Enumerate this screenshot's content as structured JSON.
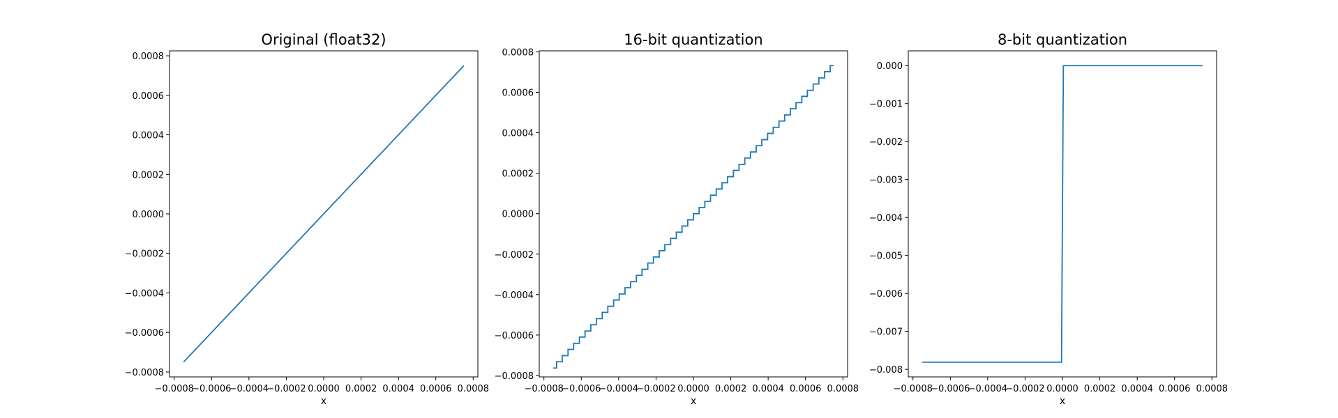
{
  "chart_data": [
    {
      "type": "line",
      "title": "Original (float32)",
      "xlabel": "x",
      "ylabel": "",
      "xlim": [
        -0.000825,
        0.000825
      ],
      "ylim": [
        -0.000825,
        0.000825
      ],
      "xticks": [
        -0.0008,
        -0.0006,
        -0.0004,
        -0.0002,
        0.0,
        0.0002,
        0.0004,
        0.0006,
        0.0008
      ],
      "xtick_labels": [
        "−0.0008",
        "−0.0006",
        "−0.0004",
        "−0.0002",
        "0.0000",
        "0.0002",
        "0.0004",
        "0.0006",
        "0.0008"
      ],
      "yticks": [
        -0.0008,
        -0.0006,
        -0.0004,
        -0.0002,
        0.0,
        0.0002,
        0.0004,
        0.0006,
        0.0008
      ],
      "ytick_labels": [
        "−0.0008",
        "−0.0006",
        "−0.0004",
        "−0.0002",
        "0.0000",
        "0.0002",
        "0.0004",
        "0.0006",
        "0.0008"
      ],
      "grid": false,
      "color": "#1f77b4",
      "series": [
        {
          "x": [
            -0.00075,
            0.00075
          ],
          "y": [
            -0.00075,
            0.00075
          ]
        }
      ]
    },
    {
      "type": "line",
      "title": "16-bit quantization",
      "xlabel": "x",
      "ylabel": "",
      "xlim": [
        -0.000825,
        0.000825
      ],
      "ylim": [
        -0.000807,
        0.000805
      ],
      "xticks": [
        -0.0008,
        -0.0006,
        -0.0004,
        -0.0002,
        0.0,
        0.0002,
        0.0004,
        0.0006,
        0.0008
      ],
      "xtick_labels": [
        "−0.0008",
        "−0.0006",
        "−0.0004",
        "−0.0002",
        "0.0000",
        "0.0002",
        "0.0004",
        "0.0006",
        "0.0008"
      ],
      "yticks": [
        -0.0008,
        -0.0006,
        -0.0004,
        -0.0002,
        0.0,
        0.0002,
        0.0004,
        0.0006,
        0.0008
      ],
      "ytick_labels": [
        "−0.0008",
        "−0.0006",
        "−0.0004",
        "−0.0002",
        "0.0000",
        "0.0002",
        "0.0004",
        "0.0006",
        "0.0008"
      ],
      "grid": false,
      "color": "#1f77b4",
      "series": [
        {
          "x": [
            -0.00075,
            -0.000732,
            -0.000732,
            -0.000702,
            -0.000702,
            -0.000671,
            -0.000671,
            -0.000641,
            -0.000641,
            -0.00061,
            -0.00061,
            -0.00058,
            -0.00058,
            -0.000549,
            -0.000549,
            -0.000519,
            -0.000519,
            -0.000488,
            -0.000488,
            -0.000458,
            -0.000458,
            -0.000427,
            -0.000427,
            -0.000397,
            -0.000397,
            -0.000366,
            -0.000366,
            -0.000336,
            -0.000336,
            -0.000305,
            -0.000305,
            -0.000275,
            -0.000275,
            -0.000244,
            -0.000244,
            -0.000214,
            -0.000214,
            -0.000183,
            -0.000183,
            -0.000153,
            -0.000153,
            -0.000122,
            -0.000122,
            -9.16e-05,
            -9.16e-05,
            -6.1e-05,
            -6.1e-05,
            -3.05e-05,
            -3.05e-05,
            0.0,
            0.0,
            3.05e-05,
            3.05e-05,
            6.1e-05,
            6.1e-05,
            9.16e-05,
            9.16e-05,
            0.000122,
            0.000122,
            0.000153,
            0.000153,
            0.000183,
            0.000183,
            0.000214,
            0.000214,
            0.000244,
            0.000244,
            0.000275,
            0.000275,
            0.000305,
            0.000305,
            0.000336,
            0.000336,
            0.000366,
            0.000366,
            0.000397,
            0.000397,
            0.000427,
            0.000427,
            0.000458,
            0.000458,
            0.000488,
            0.000488,
            0.000519,
            0.000519,
            0.000549,
            0.000549,
            0.00058,
            0.00058,
            0.00061,
            0.00061,
            0.000641,
            0.000641,
            0.000671,
            0.000671,
            0.000702,
            0.000702,
            0.000732,
            0.000732,
            0.00075
          ],
          "y": [
            -0.000763,
            -0.000763,
            -0.000732,
            -0.000732,
            -0.000702,
            -0.000702,
            -0.000671,
            -0.000671,
            -0.000641,
            -0.000641,
            -0.00061,
            -0.00061,
            -0.00058,
            -0.00058,
            -0.000549,
            -0.000549,
            -0.000519,
            -0.000519,
            -0.000488,
            -0.000488,
            -0.000458,
            -0.000458,
            -0.000427,
            -0.000427,
            -0.000397,
            -0.000397,
            -0.000366,
            -0.000366,
            -0.000336,
            -0.000336,
            -0.000305,
            -0.000305,
            -0.000275,
            -0.000275,
            -0.000244,
            -0.000244,
            -0.000214,
            -0.000214,
            -0.000183,
            -0.000183,
            -0.000153,
            -0.000153,
            -0.000122,
            -0.000122,
            -9.16e-05,
            -9.16e-05,
            -6.1e-05,
            -6.1e-05,
            -3.05e-05,
            -3.05e-05,
            0.0,
            0.0,
            3.05e-05,
            3.05e-05,
            6.1e-05,
            6.1e-05,
            9.16e-05,
            9.16e-05,
            0.000122,
            0.000122,
            0.000153,
            0.000153,
            0.000183,
            0.000183,
            0.000214,
            0.000214,
            0.000244,
            0.000244,
            0.000275,
            0.000275,
            0.000305,
            0.000305,
            0.000336,
            0.000336,
            0.000366,
            0.000366,
            0.000397,
            0.000397,
            0.000427,
            0.000427,
            0.000458,
            0.000458,
            0.000488,
            0.000488,
            0.000519,
            0.000519,
            0.000549,
            0.000549,
            0.00058,
            0.00058,
            0.00061,
            0.00061,
            0.000641,
            0.000641,
            0.000671,
            0.000671,
            0.000702,
            0.000702,
            0.000732,
            0.000732
          ]
        }
      ]
    },
    {
      "type": "line",
      "title": "8-bit quantization",
      "xlabel": "x",
      "ylabel": "",
      "xlim": [
        -0.000825,
        0.000825
      ],
      "ylim": [
        -0.0082,
        0.00039
      ],
      "xticks": [
        -0.0008,
        -0.0006,
        -0.0004,
        -0.0002,
        0.0,
        0.0002,
        0.0004,
        0.0006,
        0.0008
      ],
      "xtick_labels": [
        "−0.0008",
        "−0.0006",
        "−0.0004",
        "−0.0002",
        "0.0000",
        "0.0002",
        "0.0004",
        "0.0006",
        "0.0008"
      ],
      "yticks": [
        -0.008,
        -0.007,
        -0.006,
        -0.005,
        -0.004,
        -0.003,
        -0.002,
        -0.001,
        0.0
      ],
      "ytick_labels": [
        "−0.008",
        "−0.007",
        "−0.006",
        "−0.005",
        "−0.004",
        "−0.003",
        "−0.002",
        "−0.001",
        "0.000"
      ],
      "grid": false,
      "color": "#1f77b4",
      "series": [
        {
          "x": [
            -0.00075,
            -5e-06,
            5e-06,
            0.00075
          ],
          "y": [
            -0.0078125,
            -0.0078125,
            0.0,
            0.0
          ]
        }
      ]
    }
  ]
}
